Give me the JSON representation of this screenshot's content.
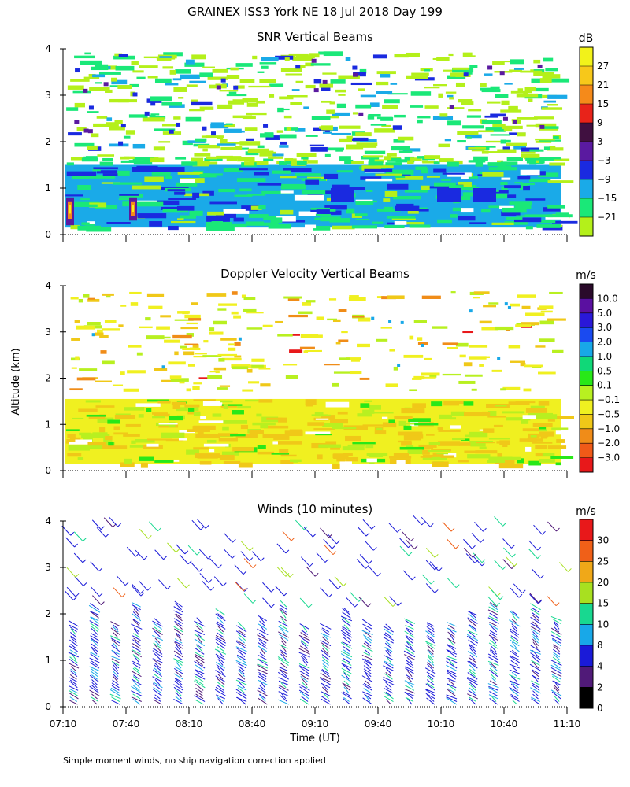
{
  "page": {
    "title": "GRAINEX ISS3 York NE  18 Jul 2018 Day 199",
    "y_axis_label": "Altitude (km)",
    "footnote": "Simple moment winds, no ship navigation correction applied"
  },
  "chart_data": [
    {
      "type": "heatmap",
      "title": "SNR Vertical Beams",
      "xlabel": "",
      "ylabel": "Altitude (km)",
      "x_ticks": [
        "07:10",
        "07:40",
        "08:10",
        "08:40",
        "09:10",
        "09:40",
        "10:10",
        "10:40",
        "11:10"
      ],
      "x_range": [
        "07:10",
        "11:10"
      ],
      "ylim": [
        0,
        4
      ],
      "y_ticks": [
        0,
        1,
        2,
        3,
        4
      ],
      "colorbar": {
        "unit": "dB",
        "labels": [
          "27",
          "21",
          "15",
          "9",
          "3",
          "−3",
          "−9",
          "−15",
          "−21"
        ],
        "colors": [
          "#f2f21a",
          "#f7c81a",
          "#f58a1a",
          "#e8231a",
          "#401040",
          "#5a1aa0",
          "#1a2ae0",
          "#1aaae8",
          "#1ae878",
          "#b4f01a"
        ]
      },
      "bands": [
        {
          "alt_range": [
            0.15,
            1.5
          ],
          "dominant": "−9 to −3 dB"
        },
        {
          "alt_range": [
            1.5,
            4.0
          ],
          "dominant": "−21 to −15 dB, scattered"
        }
      ],
      "peaks": [
        {
          "time": "07:13",
          "alt_range": [
            0.2,
            0.8
          ],
          "level": "27 dB"
        },
        {
          "time": "07:43",
          "alt_range": [
            0.3,
            0.8
          ],
          "level": "21 dB"
        }
      ]
    },
    {
      "type": "heatmap",
      "title": "Doppler Velocity Vertical Beams",
      "xlabel": "",
      "ylabel": "Altitude (km)",
      "x_ticks": [
        "07:10",
        "07:40",
        "08:10",
        "08:40",
        "09:10",
        "09:40",
        "10:10",
        "10:40",
        "11:10"
      ],
      "x_range": [
        "07:10",
        "11:10"
      ],
      "ylim": [
        0,
        4
      ],
      "y_ticks": [
        0,
        1,
        2,
        3,
        4
      ],
      "colorbar": {
        "unit": "m/s",
        "labels": [
          "10.0",
          "5.0",
          "3.0",
          "2.0",
          "1.0",
          "0.5",
          "0.1",
          "−0.1",
          "−0.5",
          "−1.0",
          "−2.0",
          "−3.0"
        ],
        "colors": [
          "#2a0a2a",
          "#5a10a0",
          "#2a18d8",
          "#1a4af0",
          "#18a8e8",
          "#10d878",
          "#28e818",
          "#b8f020",
          "#f0f020",
          "#f0c818",
          "#f08c18",
          "#f05a18",
          "#e8181a"
        ]
      },
      "bands": [
        {
          "alt_range": [
            0.15,
            1.6
          ],
          "dominant": "−0.5 to −0.1 m/s"
        },
        {
          "alt_range": [
            1.6,
            4.0
          ],
          "dominant": "scattered −0.1 to 0.5 m/s"
        }
      ]
    },
    {
      "type": "scatter",
      "title": "Winds (10 minutes)",
      "xlabel": "Time (UT)",
      "ylabel": "Altitude (km)",
      "x_ticks": [
        "07:10",
        "07:40",
        "08:10",
        "08:40",
        "09:10",
        "09:40",
        "10:10",
        "10:40",
        "11:10"
      ],
      "x_range": [
        "07:10",
        "11:10"
      ],
      "ylim": [
        0,
        4
      ],
      "y_ticks": [
        0,
        1,
        2,
        3,
        4
      ],
      "colorbar": {
        "unit": "m/s",
        "labels": [
          "30",
          "25",
          "20",
          "15",
          "10",
          "8",
          "4",
          "2",
          "0"
        ],
        "colors": [
          "#e8181a",
          "#f06018",
          "#f0a818",
          "#a8e020",
          "#18d890",
          "#18a8e8",
          "#1a1ad8",
          "#501a78",
          "#000000"
        ]
      },
      "profile_times": [
        "07:15",
        "07:25",
        "07:35",
        "07:45",
        "07:55",
        "08:05",
        "08:15",
        "08:25",
        "08:35",
        "08:45",
        "08:55",
        "09:05",
        "09:15",
        "09:25",
        "09:35",
        "09:45",
        "09:55",
        "10:05",
        "10:15",
        "10:25",
        "10:35",
        "10:45",
        "10:55",
        "11:05"
      ],
      "dominant_speed": "4 to 8 m/s"
    }
  ]
}
